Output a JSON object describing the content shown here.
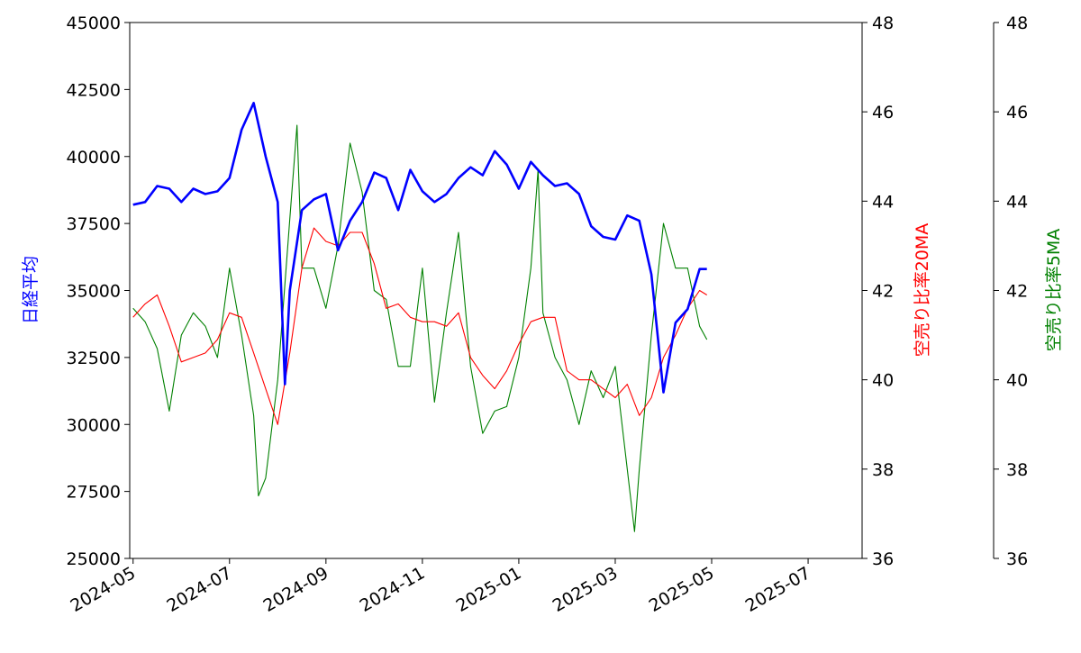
{
  "chart_data": {
    "type": "line",
    "xlim": [
      -0.07,
      15.12
    ],
    "xticks": [
      {
        "value": 0,
        "label": "2024-05"
      },
      {
        "value": 2,
        "label": "2024-07"
      },
      {
        "value": 4,
        "label": "2024-09"
      },
      {
        "value": 6,
        "label": "2024-11"
      },
      {
        "value": 8,
        "label": "2025-01"
      },
      {
        "value": 10,
        "label": "2025-03"
      },
      {
        "value": 12,
        "label": "2025-05"
      },
      {
        "value": 14,
        "label": "2025-07"
      }
    ],
    "ylabel": "日経平均",
    "ylim": [
      25000,
      45000
    ],
    "yticks": [
      25000,
      27500,
      30000,
      32500,
      35000,
      37500,
      40000,
      42500,
      45000
    ],
    "y2label": "空売り比率20MA",
    "y2lim": [
      36,
      48
    ],
    "y2ticks": [
      36,
      38,
      40,
      42,
      44,
      46,
      48
    ],
    "y3label": "空売り比率5MA",
    "y3lim": [
      36,
      48
    ],
    "y3ticks": [
      36,
      38,
      40,
      42,
      44,
      46,
      48
    ],
    "series": [
      {
        "name": "日経平均",
        "color": "#0000ff",
        "axis": "y",
        "x": [
          0,
          0.25,
          0.5,
          0.75,
          1,
          1.25,
          1.5,
          1.75,
          2,
          2.25,
          2.5,
          2.75,
          3,
          3.15,
          3.25,
          3.5,
          3.75,
          4,
          4.25,
          4.5,
          4.75,
          5,
          5.25,
          5.5,
          5.75,
          6,
          6.25,
          6.5,
          6.75,
          7,
          7.25,
          7.5,
          7.75,
          8,
          8.25,
          8.5,
          8.75,
          9,
          9.25,
          9.5,
          9.75,
          10,
          10.25,
          10.5,
          10.75,
          11,
          11.25,
          11.5,
          11.75,
          11.9
        ],
        "values": [
          38200,
          38300,
          38900,
          38800,
          38300,
          38800,
          38600,
          38700,
          39200,
          41000,
          42000,
          40000,
          38300,
          31500,
          35000,
          38000,
          38400,
          38600,
          36500,
          37600,
          38300,
          39400,
          39200,
          38000,
          39500,
          38700,
          38300,
          38600,
          39200,
          39600,
          39300,
          40200,
          39700,
          38800,
          39800,
          39300,
          38900,
          39000,
          38600,
          37400,
          37000,
          36900,
          37800,
          37600,
          35600,
          31200,
          33800,
          34300,
          35800,
          35800
        ]
      },
      {
        "name": "空売り比率20MA",
        "color": "#ff0000",
        "axis": "y2",
        "x": [
          0,
          0.25,
          0.5,
          0.75,
          1,
          1.25,
          1.5,
          1.75,
          2,
          2.25,
          2.5,
          2.75,
          3,
          3.25,
          3.5,
          3.75,
          4,
          4.25,
          4.5,
          4.75,
          5,
          5.25,
          5.5,
          5.75,
          6,
          6.25,
          6.5,
          6.75,
          7,
          7.25,
          7.5,
          7.75,
          8,
          8.25,
          8.5,
          8.75,
          9,
          9.25,
          9.5,
          9.75,
          10,
          10.25,
          10.5,
          10.75,
          11,
          11.25,
          11.5,
          11.75,
          11.9
        ],
        "values": [
          41.4,
          41.7,
          41.9,
          41.2,
          40.4,
          40.5,
          40.6,
          40.9,
          41.5,
          41.4,
          40.6,
          39.8,
          39.0,
          40.6,
          42.5,
          43.4,
          43.1,
          43.0,
          43.3,
          43.3,
          42.6,
          41.6,
          41.7,
          41.4,
          41.3,
          41.3,
          41.2,
          41.5,
          40.5,
          40.1,
          39.8,
          40.2,
          40.8,
          41.3,
          41.4,
          41.4,
          40.2,
          40.0,
          40.0,
          39.8,
          39.6,
          39.9,
          39.2,
          39.6,
          40.5,
          41.0,
          41.6,
          42.0,
          41.9
        ]
      },
      {
        "name": "空売り比率5MA",
        "color": "#008000",
        "axis": "y3",
        "x": [
          0,
          0.25,
          0.5,
          0.75,
          1,
          1.25,
          1.5,
          1.75,
          2,
          2.25,
          2.5,
          2.6,
          2.75,
          3,
          3.25,
          3.4,
          3.5,
          3.75,
          4,
          4.25,
          4.5,
          4.75,
          5,
          5.25,
          5.5,
          5.75,
          6,
          6.25,
          6.5,
          6.75,
          7,
          7.25,
          7.5,
          7.75,
          8,
          8.25,
          8.4,
          8.5,
          8.75,
          9,
          9.25,
          9.5,
          9.75,
          10,
          10.25,
          10.4,
          10.5,
          10.75,
          11,
          11.25,
          11.5,
          11.75,
          11.9
        ],
        "values": [
          41.6,
          41.3,
          40.7,
          39.3,
          41.0,
          41.5,
          41.2,
          40.5,
          42.5,
          41.0,
          39.2,
          37.4,
          37.8,
          40.0,
          43.6,
          45.7,
          42.5,
          42.5,
          41.6,
          43.0,
          45.3,
          44.2,
          42.0,
          41.8,
          40.3,
          40.3,
          42.5,
          39.5,
          41.5,
          43.3,
          40.3,
          38.8,
          39.3,
          39.4,
          40.5,
          42.5,
          44.7,
          41.5,
          40.5,
          40.0,
          39.0,
          40.2,
          39.6,
          40.3,
          38.0,
          36.6,
          38.0,
          41.0,
          43.5,
          42.5,
          42.5,
          41.2,
          40.9
        ]
      }
    ]
  }
}
